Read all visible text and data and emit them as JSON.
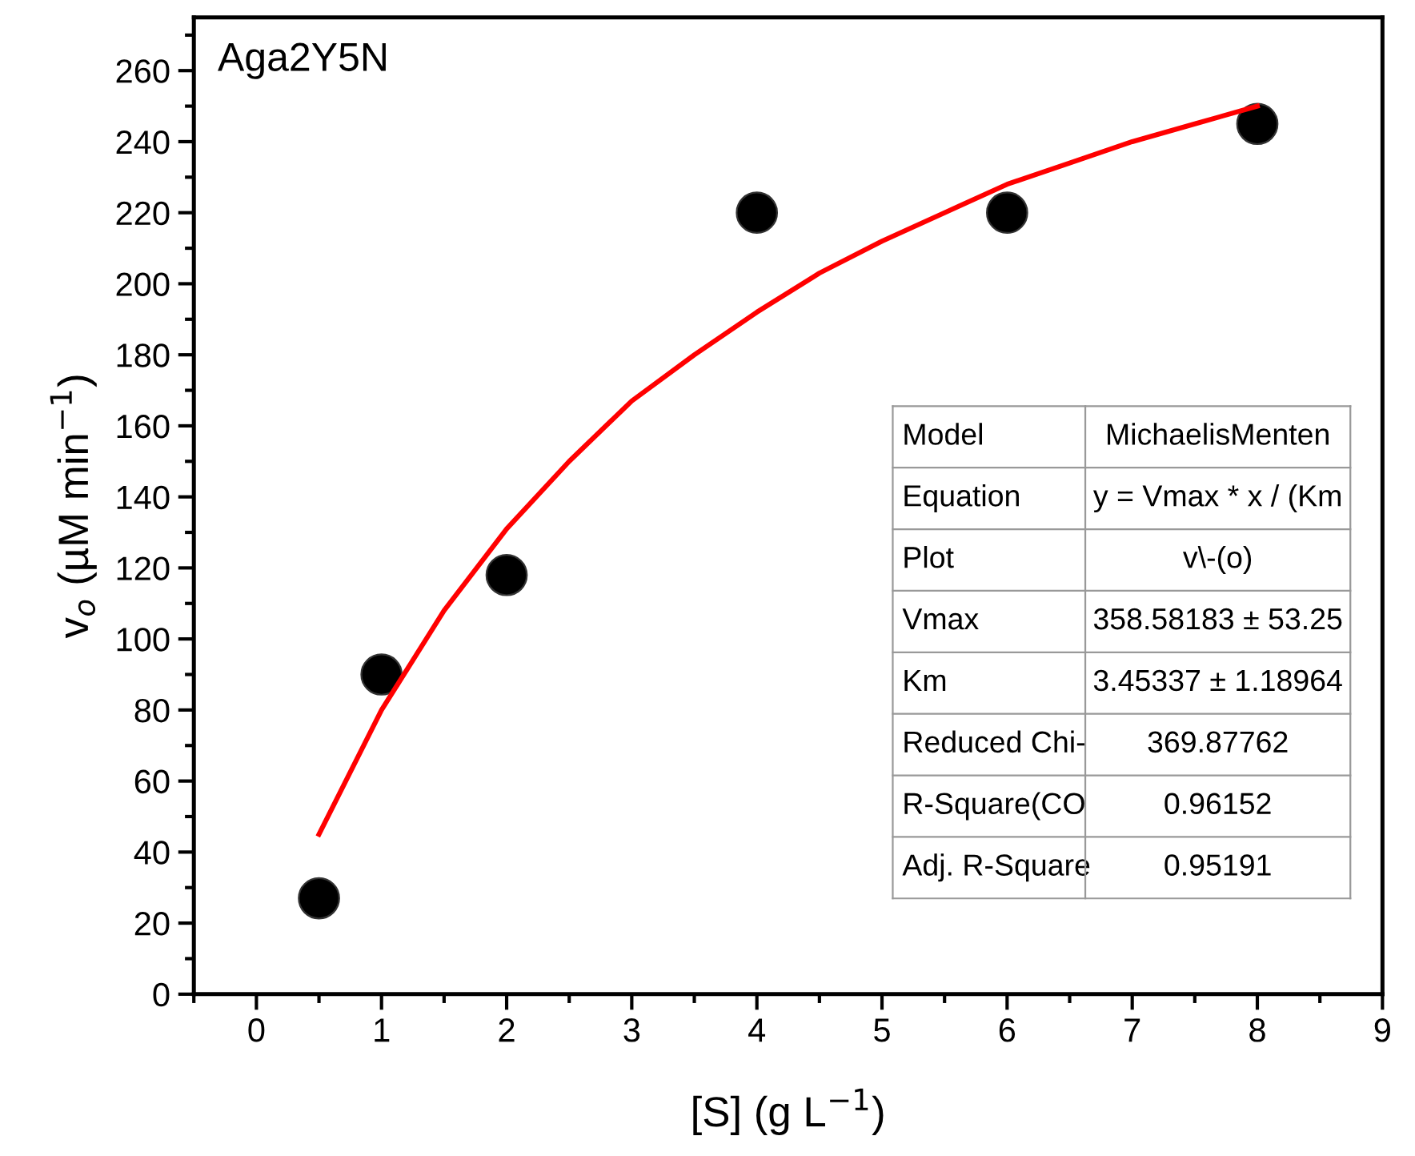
{
  "chart_data": {
    "type": "scatter",
    "title": "Aga2Y5N",
    "xlabel": "[S] (g L$^{−1}$)",
    "ylabel": "v$_{o}$ (µM min$^{−1}$)",
    "series": [
      {
        "color": "#000000",
        "marker": "circle",
        "x": [
          0.5,
          1,
          2,
          4,
          6,
          8
        ],
        "values": [
          27,
          90,
          118,
          220,
          220,
          245
        ]
      },
      {
        "type": "line",
        "color": "#ff0000",
        "marker": "none",
        "x": [
          0.5,
          1,
          1.5,
          2,
          2.5,
          3,
          3.5,
          4,
          4.5,
          5,
          5.5,
          6,
          6.5,
          7,
          7.5,
          8
        ],
        "values": [
          45,
          80,
          108,
          131,
          150,
          167,
          180,
          192,
          203,
          212,
          220,
          228,
          234,
          240,
          245,
          250
        ]
      }
    ],
    "xlim": [
      -0.5,
      9
    ],
    "xticks": [
      0,
      1,
      2,
      3,
      4,
      5,
      6,
      7,
      8,
      9
    ],
    "ylim": [
      0,
      275
    ],
    "yticks": [
      0,
      20,
      40,
      60,
      80,
      100,
      120,
      140,
      160,
      180,
      200,
      220,
      240,
      260
    ],
    "grid": false,
    "legend": false,
    "annotations": [
      "Model",
      "MichaelisMenten",
      "Equation",
      "y = Vmax * x / (Km",
      "Plot",
      "v\\-(o)",
      "Vmax",
      "358.58183 ± 53.25",
      "Km",
      "3.45337 ± 1.18964",
      "Reduced Chi-",
      "369.87762",
      "R-Square(CO",
      "0.96152",
      "Adj. R-Square",
      "0.95191"
    ]
  }
}
